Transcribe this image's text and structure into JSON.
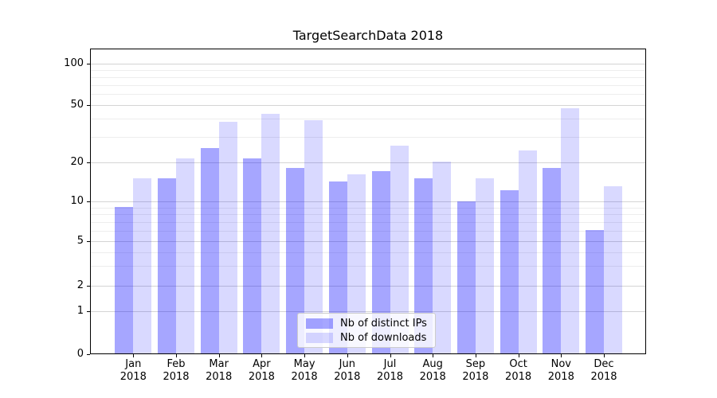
{
  "chart_data": {
    "type": "bar",
    "title": "TargetSearchData 2018",
    "year": "2018",
    "categories": [
      "Jan",
      "Feb",
      "Mar",
      "Apr",
      "May",
      "Jun",
      "Jul",
      "Aug",
      "Sep",
      "Oct",
      "Nov",
      "Dec"
    ],
    "series": [
      {
        "name": "Nb of distinct IPs",
        "color": "rgba(0,0,255,0.35)",
        "values": [
          9,
          15,
          25,
          21,
          18,
          14,
          17,
          15,
          10,
          12,
          18,
          6
        ]
      },
      {
        "name": "Nb of downloads",
        "color": "rgba(0,0,255,0.15)",
        "values": [
          15,
          21,
          38,
          43,
          39,
          16,
          26,
          20,
          15,
          24,
          47,
          13
        ]
      }
    ],
    "yscale": "symlog",
    "ylim": [
      0,
      130
    ],
    "y_major_ticks": [
      100,
      50,
      20,
      10,
      5,
      2,
      1,
      0
    ],
    "y_minor_ticks": [
      90,
      80,
      70,
      60,
      40,
      30,
      9,
      8,
      7,
      6,
      4,
      3
    ],
    "grid": "horizontal, major and minor",
    "legend_position": "lower center"
  },
  "colors": {
    "bar_distinct_ips": "rgba(0,0,255,0.35)",
    "bar_downloads": "rgba(0,0,255,0.15)",
    "grid_major": "#d4d4d4",
    "grid_minor": "#ededed",
    "axis": "#000000",
    "background": "#ffffff"
  }
}
